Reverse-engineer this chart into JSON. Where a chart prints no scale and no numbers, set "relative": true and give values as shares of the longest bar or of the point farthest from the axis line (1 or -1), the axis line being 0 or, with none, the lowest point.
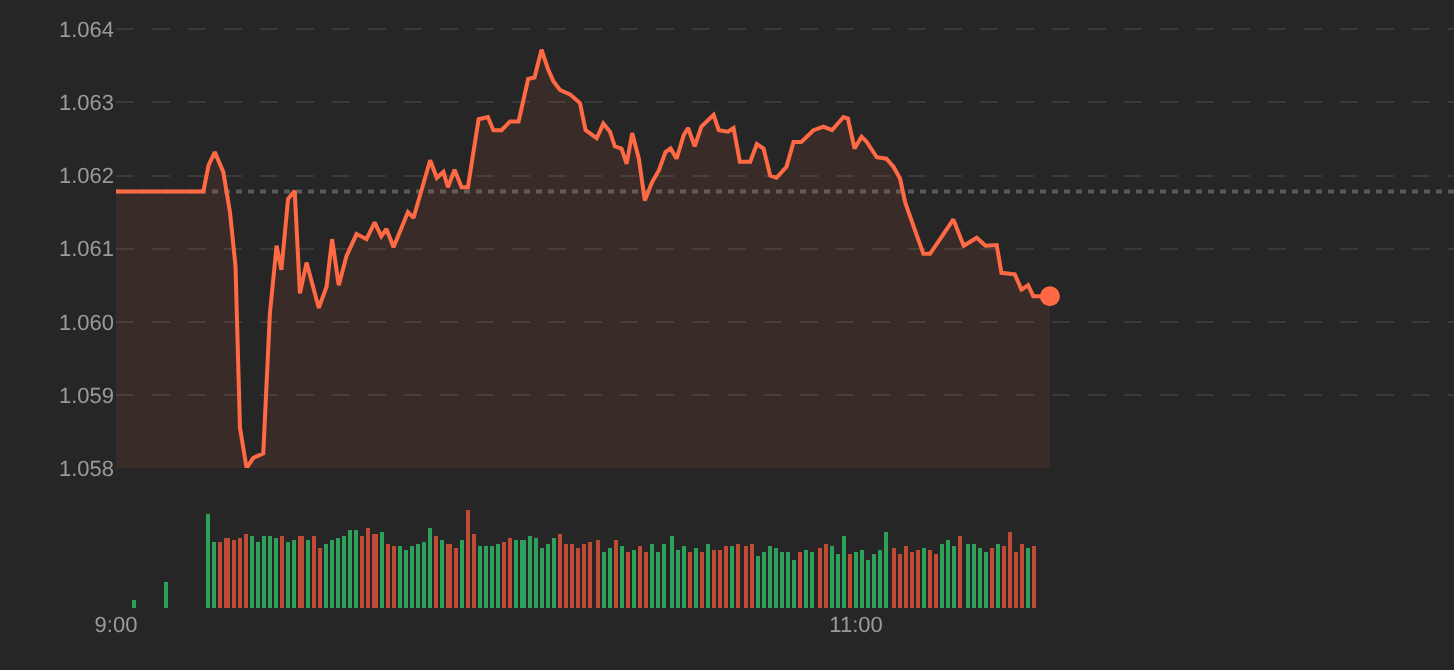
{
  "chart_data": [
    {
      "type": "area",
      "xlim": [
        9,
        12.616
      ],
      "ylim": [
        1.058,
        1.0644
      ],
      "yticks": [
        1.058,
        1.059,
        {
          "value": 1.06,
          "label": "1.060"
        },
        1.061,
        1.062,
        1.063,
        1.064
      ],
      "grid": "y",
      "tick_labels": "y",
      "ref_lines": [
        {
          "axis": "y",
          "value": 1.06178,
          "color": "#5a5a5a",
          "line_style": "dotted"
        }
      ],
      "series": [
        {
          "type": "area",
          "color": "#ff6a45",
          "x": [
            9.0,
            9.236,
            9.25,
            9.267,
            9.29,
            9.308,
            9.323,
            9.335,
            9.353,
            9.371,
            9.398,
            9.416,
            9.434,
            9.447,
            9.465,
            9.483,
            9.497,
            9.515,
            9.548,
            9.569,
            9.584,
            9.602,
            9.623,
            9.65,
            9.677,
            9.699,
            9.717,
            9.731,
            9.75,
            9.789,
            9.804,
            9.849,
            9.867,
            9.885,
            9.897,
            9.915,
            9.934,
            9.951,
            9.98,
            10.005,
            10.02,
            10.042,
            10.065,
            10.088,
            10.114,
            10.131,
            10.15,
            10.168,
            10.182,
            10.2,
            10.227,
            10.254,
            10.269,
            10.299,
            10.317,
            10.335,
            10.348,
            10.366,
            10.38,
            10.395,
            10.413,
            10.429,
            10.449,
            10.467,
            10.485,
            10.499,
            10.515,
            10.534,
            10.546,
            10.564,
            10.582,
            10.615,
            10.629,
            10.654,
            10.669,
            10.686,
            10.714,
            10.732,
            10.75,
            10.768,
            10.785,
            10.812,
            10.831,
            10.852,
            10.885,
            10.912,
            10.935,
            10.966,
            10.978,
            10.996,
            11.015,
            11.029,
            11.056,
            11.082,
            11.101,
            11.119,
            11.133,
            11.158,
            11.182,
            11.2,
            11.227,
            11.263,
            11.291,
            11.326,
            11.35,
            11.38,
            11.393,
            11.429,
            11.447,
            11.465,
            11.479,
            11.524
          ],
          "values": [
            1.06178,
            1.06178,
            1.06214,
            1.06232,
            1.06205,
            1.0615,
            1.06076,
            1.05855,
            1.058,
            1.05814,
            1.0582,
            1.06012,
            1.06104,
            1.06071,
            1.06168,
            1.06179,
            1.06039,
            1.06081,
            1.06019,
            1.06048,
            1.06113,
            1.0605,
            1.0609,
            1.0612,
            1.06113,
            1.06136,
            1.06117,
            1.06127,
            1.06102,
            1.0615,
            1.06142,
            1.06221,
            1.06197,
            1.06205,
            1.06184,
            1.06208,
            1.06184,
            1.06184,
            1.06277,
            1.0628,
            1.06262,
            1.06262,
            1.06274,
            1.06274,
            1.06332,
            1.06334,
            1.06372,
            1.06345,
            1.06329,
            1.06317,
            1.06311,
            1.06299,
            1.06262,
            1.06251,
            1.06271,
            1.0626,
            1.0624,
            1.06237,
            1.06216,
            1.06258,
            1.06223,
            1.06166,
            1.06191,
            1.06207,
            1.06232,
            1.06237,
            1.06223,
            1.06255,
            1.06265,
            1.0624,
            1.06267,
            1.06283,
            1.06262,
            1.0626,
            1.06265,
            1.06219,
            1.06219,
            1.06243,
            1.06237,
            1.062,
            1.06197,
            1.06212,
            1.06246,
            1.06246,
            1.06262,
            1.06267,
            1.06262,
            1.0628,
            1.06278,
            1.06237,
            1.06253,
            1.06246,
            1.06225,
            1.06223,
            1.06212,
            1.06196,
            1.06163,
            1.06127,
            1.06093,
            1.06093,
            1.06113,
            1.0614,
            1.06104,
            1.06115,
            1.06104,
            1.06105,
            1.06067,
            1.06065,
            1.06044,
            1.0605,
            1.06035,
            1.06035
          ]
        },
        {
          "type": "scatter",
          "color": "#ff6a45",
          "marker": "circle",
          "x": [
            11.524
          ],
          "values": [
            1.06035
          ]
        }
      ]
    },
    {
      "type": "bar",
      "relative": true,
      "xlim": [
        9,
        12.616
      ],
      "xticks": [
        {
          "value": 9,
          "label": "9:00"
        },
        {
          "value": 11,
          "label": "11:00"
        }
      ],
      "tick_labels": "x",
      "x": [
        9.05,
        9.133,
        9.25,
        9.267,
        9.283,
        9.3,
        9.317,
        9.333,
        9.35,
        9.367,
        9.383,
        9.4,
        9.417,
        9.433,
        9.45,
        9.467,
        9.483,
        9.5,
        9.517,
        9.533,
        9.55,
        9.567,
        9.583,
        9.6,
        9.617,
        9.633,
        9.65,
        9.667,
        9.683,
        9.7,
        9.717,
        9.733,
        9.75,
        9.767,
        9.783,
        9.8,
        9.817,
        9.833,
        9.85,
        9.867,
        9.883,
        9.9,
        9.917,
        9.933,
        9.95,
        9.967,
        9.983,
        10,
        10.017,
        10.033,
        10.05,
        10.067,
        10.083,
        10.1,
        10.117,
        10.133,
        10.15,
        10.167,
        10.183,
        10.2,
        10.217,
        10.233,
        10.25,
        10.267,
        10.283,
        10.3,
        10.317,
        10.333,
        10.35,
        10.367,
        10.383,
        10.4,
        10.417,
        10.433,
        10.45,
        10.467,
        10.483,
        10.5,
        10.517,
        10.533,
        10.55,
        10.567,
        10.583,
        10.6,
        10.617,
        10.633,
        10.65,
        10.667,
        10.683,
        10.7,
        10.717,
        10.733,
        10.75,
        10.767,
        10.783,
        10.8,
        10.817,
        10.833,
        10.85,
        10.867,
        10.883,
        10.9,
        10.917,
        10.933,
        10.95,
        10.967,
        10.983,
        11,
        11.017,
        11.033,
        11.05,
        11.067,
        11.083,
        11.1,
        11.117,
        11.133,
        11.15,
        11.167,
        11.183,
        11.2,
        11.217,
        11.233,
        11.25,
        11.267,
        11.283,
        11.3,
        11.317,
        11.333,
        11.35,
        11.367,
        11.383,
        11.4,
        11.417,
        11.433,
        11.45,
        11.467,
        11.483
      ],
      "values": [
        0.09,
        0.27,
        0.96,
        0.68,
        0.68,
        0.72,
        0.7,
        0.72,
        0.76,
        0.74,
        0.68,
        0.74,
        0.74,
        0.72,
        0.74,
        0.68,
        0.7,
        0.74,
        0.7,
        0.74,
        0.61,
        0.66,
        0.7,
        0.72,
        0.74,
        0.8,
        0.8,
        0.74,
        0.82,
        0.76,
        0.78,
        0.66,
        0.64,
        0.64,
        0.59,
        0.64,
        0.66,
        0.68,
        0.82,
        0.74,
        0.7,
        0.66,
        0.61,
        0.7,
        1.0,
        0.76,
        0.64,
        0.64,
        0.64,
        0.66,
        0.68,
        0.72,
        0.7,
        0.7,
        0.74,
        0.72,
        0.61,
        0.66,
        0.72,
        0.76,
        0.66,
        0.66,
        0.61,
        0.66,
        0.68,
        0.7,
        0.57,
        0.61,
        0.7,
        0.64,
        0.57,
        0.59,
        0.64,
        0.57,
        0.66,
        0.57,
        0.66,
        0.74,
        0.59,
        0.64,
        0.57,
        0.61,
        0.57,
        0.66,
        0.59,
        0.59,
        0.64,
        0.64,
        0.66,
        0.64,
        0.66,
        0.53,
        0.57,
        0.64,
        0.61,
        0.57,
        0.57,
        0.49,
        0.57,
        0.59,
        0.57,
        0.61,
        0.66,
        0.64,
        0.55,
        0.74,
        0.55,
        0.57,
        0.59,
        0.49,
        0.55,
        0.59,
        0.78,
        0.61,
        0.55,
        0.64,
        0.57,
        0.59,
        0.61,
        0.59,
        0.55,
        0.66,
        0.7,
        0.64,
        0.74,
        0.66,
        0.66,
        0.61,
        0.57,
        0.61,
        0.66,
        0.64,
        0.78,
        0.57,
        0.66,
        0.61,
        0.64
      ],
      "colors": [
        "#2da05a",
        "#2da05a",
        "#2da05a",
        "#2da05a",
        "#bf4b37",
        "#bf4b37",
        "#bf4b37",
        "#bf4b37",
        "#bf4b37",
        "#2da05a",
        "#2da05a",
        "#2da05a",
        "#2da05a",
        "#2da05a",
        "#bf4b37",
        "#2da05a",
        "#2da05a",
        "#bf4b37",
        "#2da05a",
        "#bf4b37",
        "#bf4b37",
        "#2da05a",
        "#2da05a",
        "#2da05a",
        "#2da05a",
        "#2da05a",
        "#2da05a",
        "#bf4b37",
        "#bf4b37",
        "#bf4b37",
        "#2da05a",
        "#bf4b37",
        "#bf4b37",
        "#2da05a",
        "#2da05a",
        "#2da05a",
        "#2da05a",
        "#2da05a",
        "#2da05a",
        "#bf4b37",
        "#2da05a",
        "#bf4b37",
        "#bf4b37",
        "#2da05a",
        "#bf4b37",
        "#bf4b37",
        "#2da05a",
        "#2da05a",
        "#2da05a",
        "#2da05a",
        "#bf4b37",
        "#bf4b37",
        "#2da05a",
        "#2da05a",
        "#2da05a",
        "#2da05a",
        "#2da05a",
        "#2da05a",
        "#2da05a",
        "#bf4b37",
        "#bf4b37",
        "#bf4b37",
        "#bf4b37",
        "#bf4b37",
        "#bf4b37",
        "#bf4b37",
        "#2da05a",
        "#2da05a",
        "#bf4b37",
        "#2da05a",
        "#bf4b37",
        "#2da05a",
        "#bf4b37",
        "#bf4b37",
        "#2da05a",
        "#2da05a",
        "#2da05a",
        "#2da05a",
        "#2da05a",
        "#2da05a",
        "#bf4b37",
        "#2da05a",
        "#bf4b37",
        "#2da05a",
        "#bf4b37",
        "#bf4b37",
        "#bf4b37",
        "#2da05a",
        "#bf4b37",
        "#bf4b37",
        "#bf4b37",
        "#2da05a",
        "#2da05a",
        "#2da05a",
        "#2da05a",
        "#2da05a",
        "#2da05a",
        "#2da05a",
        "#bf4b37",
        "#2da05a",
        "#2da05a",
        "#bf4b37",
        "#bf4b37",
        "#2da05a",
        "#2da05a",
        "#2da05a",
        "#bf4b37",
        "#2da05a",
        "#2da05a",
        "#2da05a",
        "#2da05a",
        "#2da05a",
        "#2da05a",
        "#bf4b37",
        "#bf4b37",
        "#bf4b37",
        "#bf4b37",
        "#bf4b37",
        "#2da05a",
        "#bf4b37",
        "#bf4b37",
        "#2da05a",
        "#2da05a",
        "#2da05a",
        "#bf4b37",
        "#2da05a",
        "#2da05a",
        "#2da05a",
        "#2da05a",
        "#bf4b37",
        "#2da05a",
        "#bf4b37",
        "#bf4b37",
        "#bf4b37",
        "#bf4b37",
        "#2da05a",
        "#bf4b37"
      ]
    }
  ]
}
